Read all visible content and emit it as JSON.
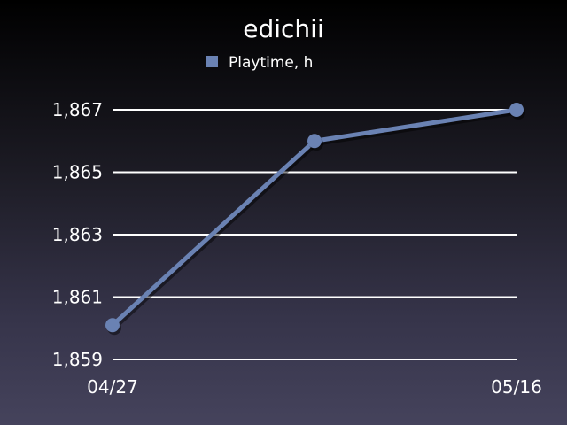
{
  "chart_data": {
    "type": "line",
    "title": "edichii",
    "xlabel": "",
    "ylabel": "",
    "grid": true,
    "legend_position": "top-center",
    "series": [
      {
        "name": "Playtime, h",
        "color": "#6a82b3",
        "points": [
          {
            "x": "04/27",
            "y": 1860.1
          },
          {
            "x": "",
            "y": 1866.0
          },
          {
            "x": "05/16",
            "y": 1867.0
          }
        ]
      }
    ],
    "x_tick_labels": [
      "04/27",
      "05/16"
    ],
    "y_ticks": [
      {
        "value": 1859,
        "label": "1,859"
      },
      {
        "value": 1861,
        "label": "1,861"
      },
      {
        "value": 1863,
        "label": "1,863"
      },
      {
        "value": 1865,
        "label": "1,865"
      },
      {
        "value": 1867,
        "label": "1,867"
      }
    ],
    "ylim": [
      1859,
      1867
    ]
  }
}
